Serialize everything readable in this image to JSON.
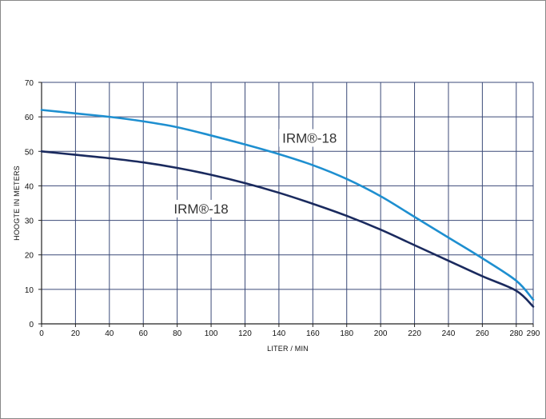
{
  "chart_data": {
    "type": "line",
    "title": "",
    "xlabel": "LITER / MIN",
    "ylabel": "HOOGTE IN METERS",
    "x_ticks": [
      0,
      20,
      40,
      60,
      80,
      100,
      120,
      140,
      160,
      180,
      200,
      220,
      240,
      260,
      280,
      290
    ],
    "y_ticks": [
      0,
      10,
      20,
      30,
      40,
      50,
      60,
      70
    ],
    "xlim": [
      0,
      290
    ],
    "ylim": [
      0,
      70
    ],
    "grid": true,
    "series": [
      {
        "name": "IRM®-18",
        "color": "#1e8fd0",
        "x": [
          0,
          20,
          40,
          60,
          80,
          100,
          120,
          140,
          160,
          180,
          200,
          220,
          240,
          260,
          280,
          290
        ],
        "y": [
          62,
          61,
          60,
          58.7,
          57,
          54.6,
          52,
          49.2,
          46,
          42,
          37,
          31,
          25,
          19,
          12.5,
          7
        ]
      },
      {
        "name": "IRM®-18",
        "color": "#1a2a5e",
        "x": [
          0,
          20,
          40,
          60,
          80,
          100,
          120,
          140,
          160,
          180,
          200,
          220,
          240,
          260,
          280,
          290
        ],
        "y": [
          50,
          49,
          48,
          46.8,
          45.2,
          43.2,
          40.8,
          38,
          34.8,
          31.3,
          27.3,
          22.8,
          18.3,
          13.8,
          9.6,
          5
        ]
      }
    ],
    "annotations": [
      {
        "text": "IRM®-18",
        "x": 142,
        "y": 52.5,
        "series": 0
      },
      {
        "text": "IRM®-18",
        "x": 78,
        "y": 32,
        "series": 1
      }
    ]
  },
  "colors": {
    "grid": "#3b4a78",
    "axis": "#222222"
  }
}
